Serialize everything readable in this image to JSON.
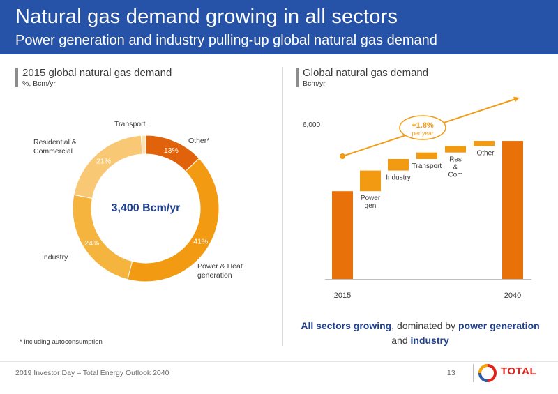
{
  "header": {
    "title": "Natural gas demand growing in all sectors",
    "subtitle": "Power generation and industry pulling-up global natural gas demand"
  },
  "left_panel": {
    "title": "2015 global natural gas demand",
    "unit": "%, Bcm/yr",
    "center_value": "3,400 Bcm/yr",
    "labels": {
      "transport": "Transport",
      "other": "Other*",
      "res_com_line1": "Residential &",
      "res_com_line2": "Commercial",
      "industry": "Industry",
      "power_line1": "Power & Heat",
      "power_line2": "generation"
    },
    "footnote": "* including autoconsumption"
  },
  "right_panel": {
    "title": "Global natural gas demand",
    "unit": "Bcm/yr",
    "growth_value": "+1.8%",
    "growth_unit": "per year",
    "summary": {
      "part1": "All sectors growing",
      "part2": ", dominated by ",
      "part3": "power generation",
      "part4": " and ",
      "part5": "industry"
    }
  },
  "footer": {
    "text": "2019 Investor Day – Total Energy Outlook 2040",
    "page": "13",
    "logo": "TOTAL"
  },
  "colors": {
    "header_bg": "#2653a8",
    "accent_blue": "#1f3f8f",
    "orange_dark": "#e8710a",
    "orange_mid": "#f29a12",
    "orange_light": "#f4b43d",
    "orange_pale": "#f9c874",
    "orange_faint": "#fbe3b4",
    "other_red": "#e0620a"
  },
  "chart_data": [
    {
      "type": "pie",
      "title": "2015 global natural gas demand",
      "unit": "%, Bcm/yr",
      "total": "3,400 Bcm/yr",
      "slices": [
        {
          "name": "Other*",
          "value": 13,
          "label": "13%"
        },
        {
          "name": "Power & Heat generation",
          "value": 41,
          "label": "41%"
        },
        {
          "name": "Industry",
          "value": 24,
          "label": "24%"
        },
        {
          "name": "Residential & Commercial",
          "value": 21,
          "label": "21%"
        },
        {
          "name": "Transport",
          "value": 1,
          "label": ""
        }
      ]
    },
    {
      "type": "bar",
      "subtype": "waterfall",
      "title": "Global natural gas demand",
      "ylabel": "Bcm/yr",
      "y_tick": "6,000",
      "y_tick_value": 6000,
      "ylim": [
        0,
        7000
      ],
      "annotation": "+1.8% per year",
      "categories": [
        "2015",
        "Power gen",
        "Industry",
        "Transport",
        "Res & Com",
        "Other",
        "2040"
      ],
      "steps": [
        {
          "name": "2015",
          "kind": "total",
          "value": 3400
        },
        {
          "name": "Power gen",
          "kind": "delta",
          "value": 800
        },
        {
          "name": "Industry",
          "kind": "delta",
          "value": 450
        },
        {
          "name": "Transport",
          "kind": "delta",
          "value": 250
        },
        {
          "name": "Res & Com",
          "kind": "delta",
          "value": 250
        },
        {
          "name": "Other",
          "kind": "delta",
          "value": 200
        },
        {
          "name": "2040",
          "kind": "total",
          "value": 5350
        }
      ]
    }
  ]
}
